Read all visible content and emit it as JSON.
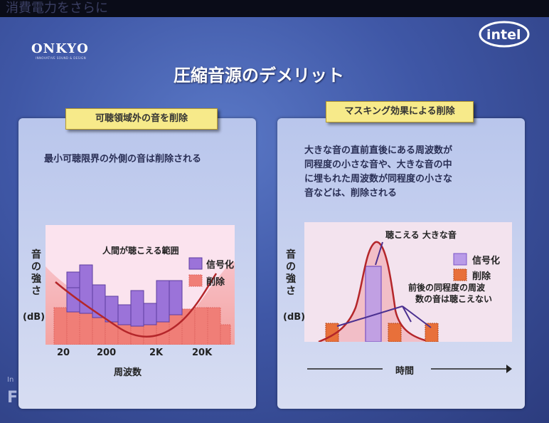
{
  "header": {
    "banner_text": "消費電力をさらに",
    "onkyo_logo": "ONKYO",
    "onkyo_tagline": "INNOVATIVE SOUND & DESIGN",
    "intel_logo": "intel"
  },
  "slide": {
    "title": "圧縮音源のデメリット"
  },
  "left_panel": {
    "label": "可聴領域外の音を削除",
    "description": "最小可聴限界の外側の音は削除される",
    "chart_inside_title": "人間が聴こえる範囲",
    "legend_signal": "信号化",
    "legend_delete": "削除",
    "ylabel": "音の強さ",
    "yunit": "(dB)",
    "xlabel": "周波数",
    "xticks": [
      "20",
      "200",
      "2K",
      "20K"
    ]
  },
  "right_panel": {
    "label": "マスキング効果による削除",
    "description_lines": [
      "大きな音の直前直後にある周波数が",
      "同程度の小さな音や、大きな音の中",
      "に埋もれた周波数が同程度の小さな",
      "音などは、削除される"
    ],
    "annotation_loud": "聴こえる 大きな音",
    "annotation_masked_1": "前後の同程度の周波",
    "annotation_masked_2": "数の音は聴こえない",
    "legend_signal": "信号化",
    "legend_delete": "削除",
    "ylabel": "音の強さ",
    "yunit": "(dB)",
    "xlabel": "時間"
  },
  "footer": {
    "mark_top": "In",
    "mark": "F"
  },
  "colors": {
    "signal_purple": "#9b73d9",
    "delete_pink": "#f08880",
    "curve_red": "#b4262a",
    "label_yellow": "#f7ea8a",
    "slide_blue": "#3f57a6"
  },
  "chart_data": [
    {
      "type": "bar",
      "title": "人間が聴こえる範囲",
      "xlabel": "周波数",
      "ylabel": "音の強さ (dB)",
      "xticks": [
        "20",
        "200",
        "2K",
        "20K"
      ],
      "legend": [
        "信号化",
        "削除"
      ],
      "series": [
        {
          "name": "信号化",
          "values": [
            6,
            8,
            10,
            7,
            6,
            7,
            6,
            7,
            8,
            6,
            0,
            0,
            0
          ]
        },
        {
          "name": "削除",
          "values": [
            4,
            4,
            4,
            4,
            3,
            3,
            3,
            3,
            3,
            3,
            4,
            4,
            2
          ]
        }
      ]
    },
    {
      "type": "bar",
      "xlabel": "時間",
      "ylabel": "音の強さ (dB)",
      "legend": [
        "信号化",
        "削除"
      ],
      "series": [
        {
          "name": "信号化",
          "values": [
            0,
            9,
            0,
            0
          ]
        },
        {
          "name": "削除",
          "values": [
            3,
            0,
            3,
            3
          ]
        }
      ]
    }
  ]
}
